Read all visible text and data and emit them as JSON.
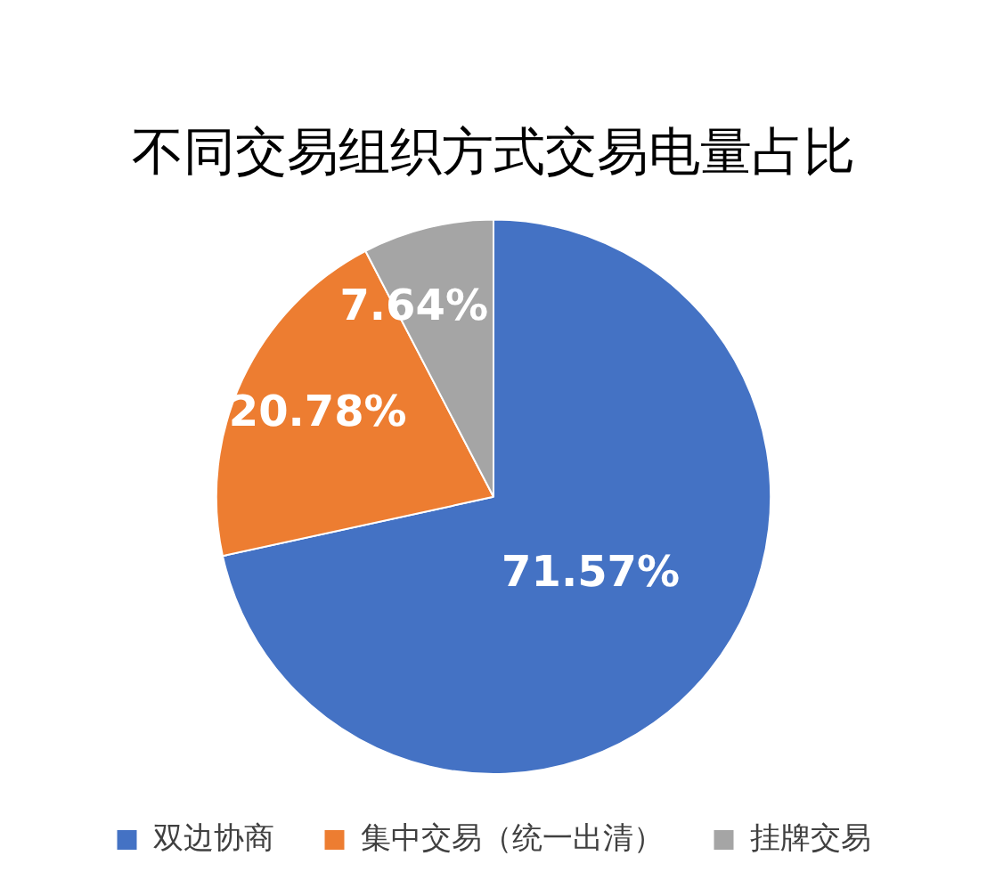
{
  "chart_data": {
    "type": "pie",
    "title": "不同交易组织方式交易电量占比",
    "categories": [
      "双边协商",
      "集中交易（统一出清）",
      "挂牌交易"
    ],
    "values": [
      71.57,
      20.78,
      7.64
    ],
    "colors": [
      "#4472c4",
      "#ed7d31",
      "#a5a5a5"
    ],
    "value_labels": [
      "71.57%",
      "20.78%",
      "7.64%"
    ],
    "legend": "bottom"
  }
}
